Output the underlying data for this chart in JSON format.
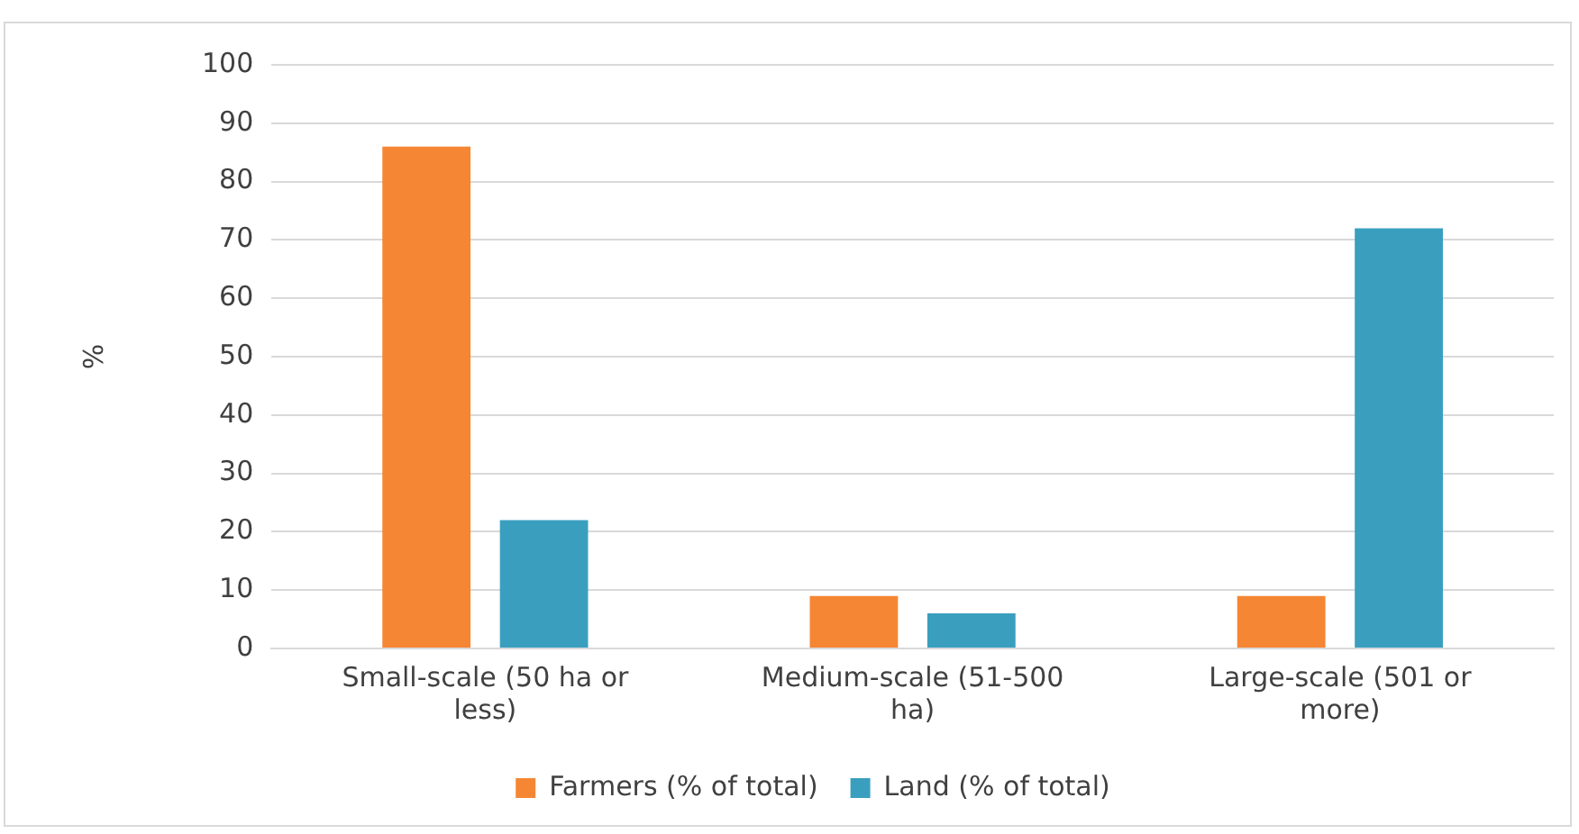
{
  "chart_data": {
    "type": "bar",
    "ylabel": "%",
    "categories": [
      "Small-scale (50 ha or less)",
      "Medium-scale (51-500 ha)",
      "Large-scale (501 or more)"
    ],
    "series": [
      {
        "name": "Farmers (% of total)",
        "color": "#f58634",
        "values": [
          86,
          9,
          9
        ]
      },
      {
        "name": "Land (% of total)",
        "color": "#3a9fbf",
        "values": [
          22,
          6,
          72
        ]
      }
    ],
    "ylim": [
      0,
      100
    ],
    "yticks": [
      0,
      10,
      20,
      30,
      40,
      50,
      60,
      70,
      80,
      90,
      100
    ],
    "grid": "y",
    "legend": "bottom"
  }
}
